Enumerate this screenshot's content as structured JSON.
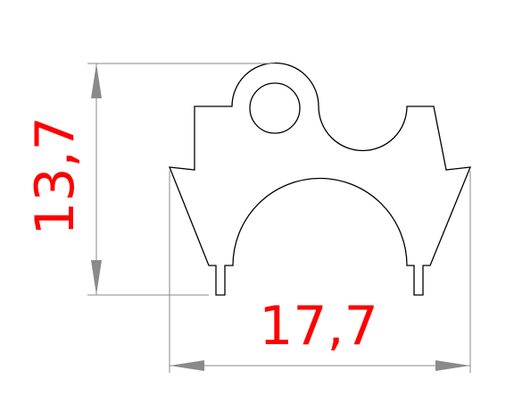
{
  "dimensions": {
    "height_label": "13,7",
    "width_label": "17,7"
  },
  "colors": {
    "part_outline": "#000000",
    "dimension_lines": "#8a8a8a",
    "dimension_text": "#ff0000"
  }
}
